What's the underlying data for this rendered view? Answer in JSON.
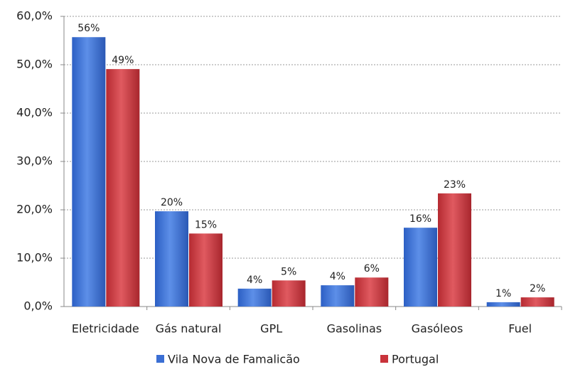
{
  "chart_data": {
    "type": "bar",
    "categories": [
      "Eletricidade",
      "Gás natural",
      "GPL",
      "Gasolinas",
      "Gasóleos",
      "Fuel"
    ],
    "series": [
      {
        "name": "Vila Nova de Famalicão",
        "color": "#3b6fd4",
        "values": [
          55.7,
          19.7,
          3.7,
          4.4,
          16.3,
          0.9
        ],
        "value_labels": [
          "56%",
          "20%",
          "4%",
          "4%",
          "16%",
          "1%"
        ]
      },
      {
        "name": "Portugal",
        "color": "#c9333b",
        "values": [
          49.1,
          15.1,
          5.4,
          6.0,
          23.4,
          1.9
        ],
        "value_labels": [
          "49%",
          "15%",
          "5%",
          "6%",
          "23%",
          "2%"
        ]
      }
    ],
    "ylim": [
      0,
      60
    ],
    "yticks": [
      {
        "value": 0,
        "label": "0,0%"
      },
      {
        "value": 10,
        "label": "10,0%"
      },
      {
        "value": 20,
        "label": "20,0%"
      },
      {
        "value": 30,
        "label": "30,0%"
      },
      {
        "value": 40,
        "label": "40,0%"
      },
      {
        "value": 50,
        "label": "50,0%"
      },
      {
        "value": 60,
        "label": "60,0%"
      }
    ],
    "grid": true,
    "legend": "bottom"
  }
}
